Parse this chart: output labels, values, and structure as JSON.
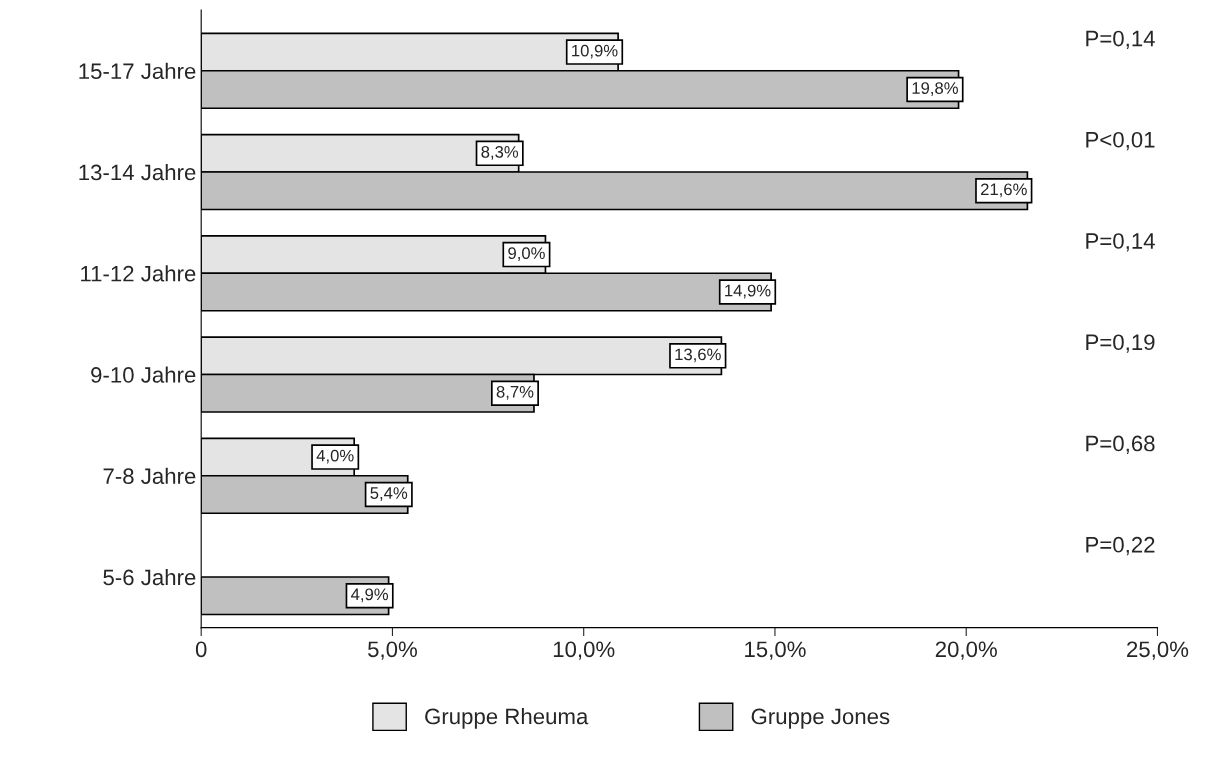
{
  "chart_data": {
    "type": "bar",
    "orientation": "horizontal",
    "categories": [
      "15-17 Jahre",
      "13-14 Jahre",
      "11-12 Jahre",
      "9-10 Jahre",
      "7-8 Jahre",
      "5-6 Jahre"
    ],
    "series": [
      {
        "name": "Gruppe Rheuma",
        "color": "#e4e4e4",
        "values": [
          10.9,
          8.3,
          9.0,
          13.6,
          4.0,
          null
        ],
        "value_labels": [
          "10,9%",
          "8,3%",
          "9,0%",
          "13,6%",
          "4,0%",
          null
        ]
      },
      {
        "name": "Gruppe Jones",
        "color": "#c0c0c0",
        "values": [
          19.8,
          21.6,
          14.9,
          8.7,
          5.4,
          4.9
        ],
        "value_labels": [
          "19,8%",
          "21,6%",
          "14,9%",
          "8,7%",
          "5,4%",
          "4,9%"
        ]
      }
    ],
    "xlim": [
      0,
      25
    ],
    "xticks": [
      0,
      {
        "value": 5,
        "label": "5,0%"
      },
      {
        "value": 10,
        "label": "10,0%"
      },
      {
        "value": 15,
        "label": "15,0%"
      },
      {
        "value": 20,
        "label": "20,0%"
      },
      {
        "value": 25,
        "label": "25,0%"
      }
    ],
    "annotations": [
      "P=0,14",
      "P<0,01",
      "P=0,14",
      "P=0,19",
      "P=0,68",
      "P=0,22"
    ],
    "legend": "bottom",
    "grid": false
  }
}
